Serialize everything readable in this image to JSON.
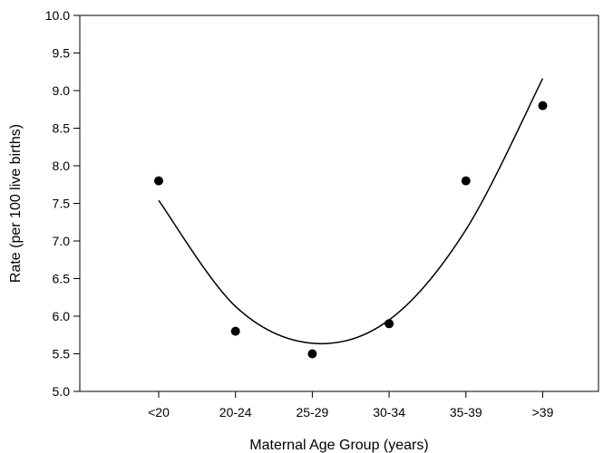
{
  "chart_data": {
    "type": "scatter",
    "title": "",
    "xlabel": "Maternal Age Group (years)",
    "ylabel": "Rate (per 100 live births)",
    "categories": [
      "<20",
      "20-24",
      "25-29",
      "30-34",
      "35-39",
      ">39"
    ],
    "ylim": [
      5.0,
      10.0
    ],
    "yticks": [
      "5.0",
      "5.5",
      "6.0",
      "6.5",
      "7.0",
      "7.5",
      "8.0",
      "8.5",
      "9.0",
      "9.5",
      "10.0"
    ],
    "grid": false,
    "legend": "none",
    "series": [
      {
        "values": [
          7.8,
          5.8,
          5.5,
          5.9,
          7.8,
          8.8
        ]
      }
    ],
    "fit": {
      "type": "quadratic",
      "points": [
        [
          0,
          7.54
        ],
        [
          1,
          6.13
        ],
        [
          2,
          5.64
        ],
        [
          3,
          5.95
        ],
        [
          4,
          7.15
        ],
        [
          5,
          9.16
        ]
      ]
    }
  }
}
